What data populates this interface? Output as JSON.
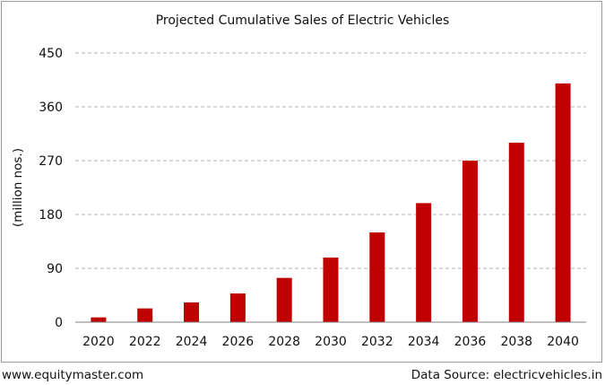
{
  "chart_data": {
    "type": "bar",
    "title": "Projected Cumulative Sales of Electric Vehicles",
    "ylabel": "(million nos.)",
    "xlabel": "",
    "categories": [
      "2020",
      "2022",
      "2024",
      "2026",
      "2028",
      "2030",
      "2032",
      "2034",
      "2036",
      "2038",
      "2040"
    ],
    "values": [
      8,
      23,
      33,
      48,
      74,
      108,
      150,
      199,
      270,
      300,
      399
    ],
    "ylim": [
      0,
      450
    ],
    "yticks": [
      0,
      90,
      180,
      270,
      360,
      450
    ],
    "grid": true,
    "bar_color": "#c00000"
  },
  "footer": {
    "left": "www.equitymaster.com",
    "right": "Data Source: electricvehicles.in"
  }
}
